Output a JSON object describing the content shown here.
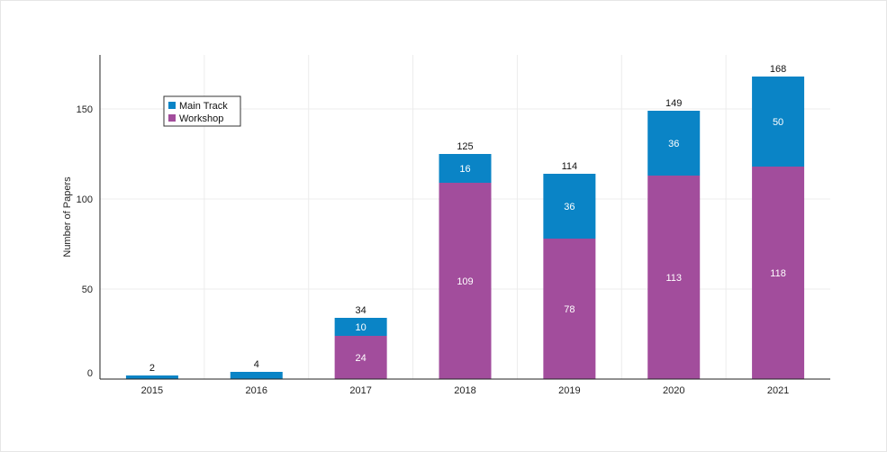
{
  "chart_data": {
    "type": "bar",
    "stacked": true,
    "categories": [
      "2015",
      "2016",
      "2017",
      "2018",
      "2019",
      "2020",
      "2021"
    ],
    "series": [
      {
        "name": "Workshop",
        "color": "#a24d9c",
        "values": [
          0,
          0,
          24,
          109,
          78,
          113,
          118
        ]
      },
      {
        "name": "Main Track",
        "color": "#0a84c6",
        "values": [
          2,
          4,
          10,
          16,
          36,
          36,
          50
        ]
      }
    ],
    "totals": [
      2,
      4,
      34,
      125,
      114,
      149,
      168
    ],
    "ylabel": "Number of Papers",
    "xlabel": "",
    "ylim": [
      0,
      180
    ],
    "yticks": [
      0,
      50,
      100,
      150
    ],
    "grid": true,
    "legend": {
      "position": "top-left",
      "order": [
        "Main Track",
        "Workshop"
      ]
    }
  }
}
